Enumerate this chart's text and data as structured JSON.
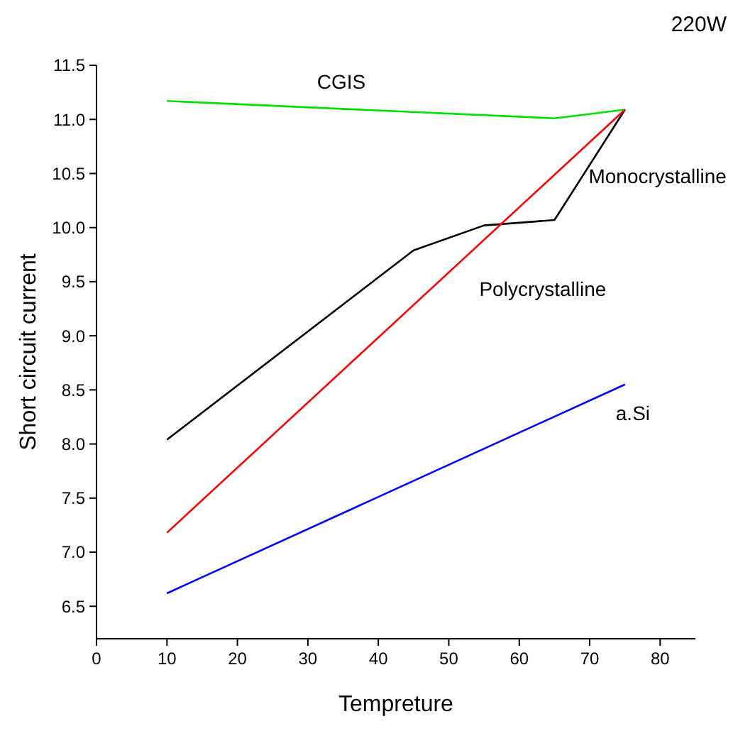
{
  "chart_data": {
    "type": "line",
    "xlabel": "Tempreture",
    "ylabel": "Short circuit current",
    "annotations": [
      "220W"
    ],
    "xlim": [
      0,
      85
    ],
    "xticks": [
      0,
      10,
      20,
      30,
      40,
      50,
      60,
      70,
      80
    ],
    "ylim": [
      6.2,
      11.5
    ],
    "yticks": [
      6.5,
      {
        "value": 7,
        "label": "7.0"
      },
      7.5,
      {
        "value": 8,
        "label": "8.0"
      },
      8.5,
      {
        "value": 9,
        "label": "9.0"
      },
      9.5,
      {
        "value": 10,
        "label": "10.0"
      },
      10.5,
      {
        "value": 11,
        "label": "11.0"
      },
      11.5
    ],
    "grid": false,
    "marker": "none",
    "line_style": "solid",
    "series": [
      {
        "name": "CGIS",
        "color": "#00e000",
        "x": [
          10,
          65,
          75
        ],
        "values": [
          11.17,
          11.01,
          11.09
        ]
      },
      {
        "name": "Monocrystalline",
        "color": "#000000",
        "x": [
          10,
          45,
          55,
          65,
          75
        ],
        "values": [
          8.04,
          9.79,
          10.02,
          10.07,
          11.09
        ]
      },
      {
        "name": "Polycrystalline",
        "color": "#ff0000",
        "x": [
          10,
          75
        ],
        "values": [
          7.18,
          11.09
        ]
      },
      {
        "name": "a.Si",
        "color": "#0000ff",
        "x": [
          10,
          75
        ],
        "values": [
          6.62,
          8.55
        ]
      }
    ]
  }
}
